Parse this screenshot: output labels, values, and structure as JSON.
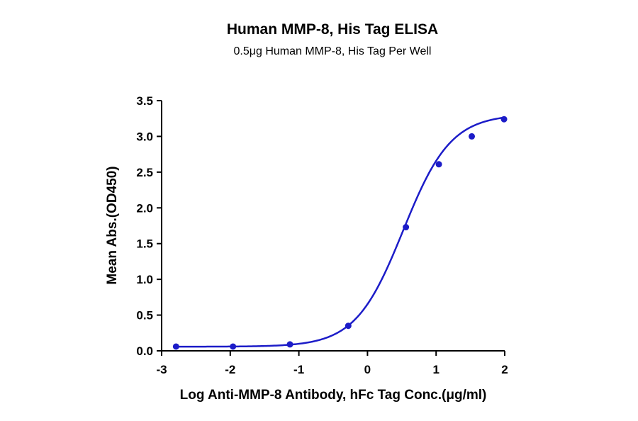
{
  "chart_data": {
    "type": "scatter",
    "title": "Human MMP-8, His Tag ELISA",
    "subtitle": "0.5μg Human MMP-8, His Tag Per Well",
    "xlabel": "Log Anti-MMP-8 Antibody, hFc Tag Conc.(μg/ml)",
    "ylabel": "Mean Abs.(OD450)",
    "xlim": [
      -3,
      2
    ],
    "ylim": [
      0,
      3.5
    ],
    "x_ticks": [
      "-3",
      "-2",
      "-1",
      "0",
      "1",
      "2"
    ],
    "y_ticks": [
      "0.0",
      "0.5",
      "1.0",
      "1.5",
      "2.0",
      "2.5",
      "3.0",
      "3.5"
    ],
    "grid": false,
    "legend": "none",
    "series_color": "#1c1cc8",
    "points": [
      {
        "x": -2.79,
        "y": 0.06
      },
      {
        "x": -1.96,
        "y": 0.06
      },
      {
        "x": -1.13,
        "y": 0.09
      },
      {
        "x": -0.28,
        "y": 0.35
      },
      {
        "x": 0.56,
        "y": 1.73
      },
      {
        "x": 1.04,
        "y": 2.61
      },
      {
        "x": 1.52,
        "y": 3.0
      },
      {
        "x": 1.99,
        "y": 3.24
      }
    ],
    "fit": {
      "bottom": 0.058,
      "top": 3.31,
      "logEC50": 0.52,
      "hill": 1.25
    }
  }
}
